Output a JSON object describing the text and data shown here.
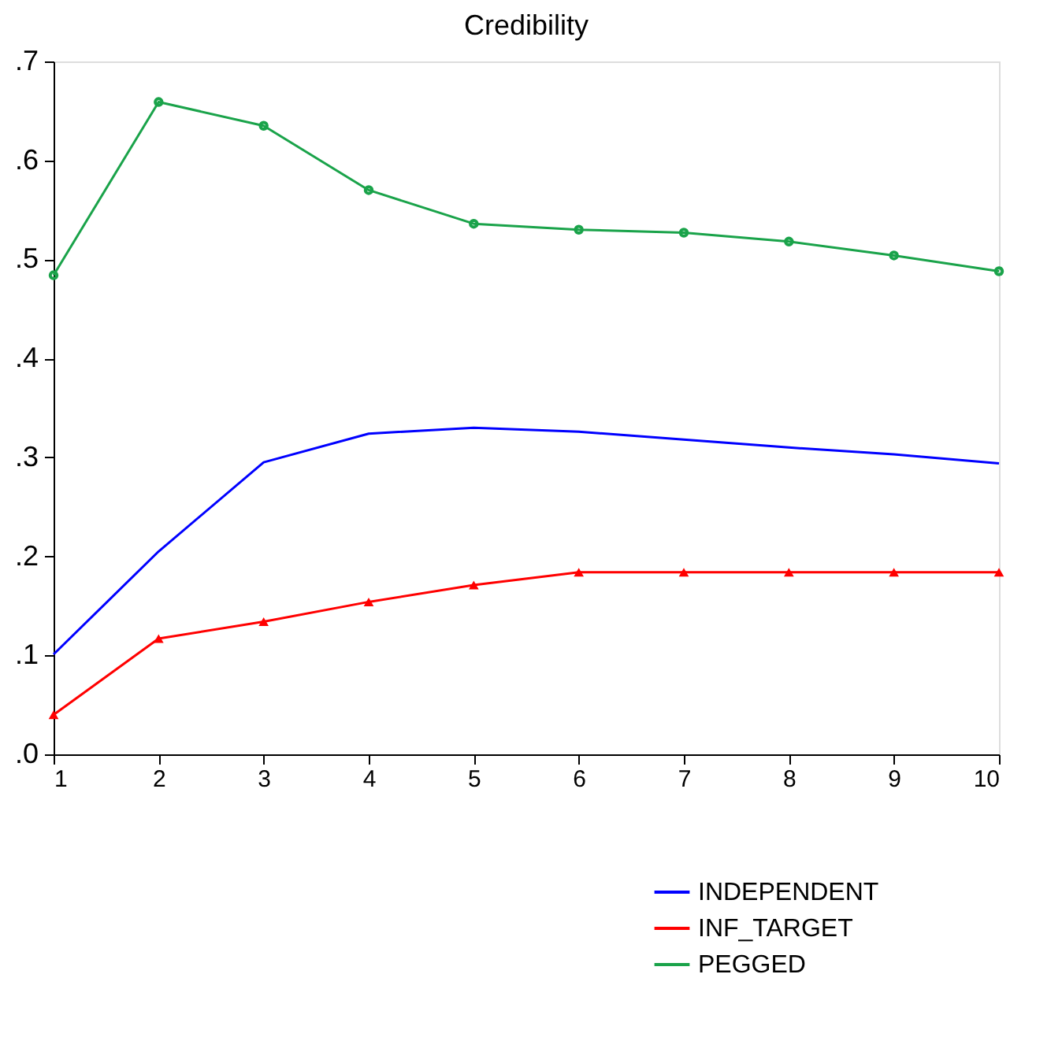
{
  "chart_data": {
    "type": "line",
    "title": "Credibility",
    "x": [
      1,
      2,
      3,
      4,
      5,
      6,
      7,
      8,
      9,
      10
    ],
    "xlim": [
      1,
      10
    ],
    "xticks": [
      1,
      2,
      3,
      4,
      5,
      6,
      7,
      8,
      9,
      10
    ],
    "ylim": [
      0,
      0.7
    ],
    "yticks": [
      {
        "value": 0,
        "label": ".0"
      },
      {
        "value": 0.1,
        "label": ".1"
      },
      {
        "value": 0.2,
        "label": ".2"
      },
      {
        "value": 0.3,
        "label": ".3"
      },
      {
        "value": 0.4,
        "label": ".4"
      },
      {
        "value": 0.5,
        "label": ".5"
      },
      {
        "value": 0.6,
        "label": ".6"
      },
      {
        "value": 0.7,
        "label": ".7"
      }
    ],
    "grid": false,
    "legend": "bottom right",
    "series": [
      {
        "name": "INDEPENDENT",
        "color": "#0000ff",
        "marker": "none",
        "values": [
          0.101,
          0.205,
          0.295,
          0.324,
          0.33,
          0.326,
          0.318,
          0.31,
          0.303,
          0.294
        ]
      },
      {
        "name": "INF_TARGET",
        "color": "#ff0000",
        "marker": "triangle",
        "values": [
          0.04,
          0.117,
          0.134,
          0.154,
          0.171,
          0.184,
          0.184,
          0.184,
          0.184,
          0.184
        ]
      },
      {
        "name": "PEGGED",
        "color": "#1aa34a",
        "marker": "circle",
        "values": [
          0.484,
          0.659,
          0.635,
          0.57,
          0.536,
          0.53,
          0.527,
          0.518,
          0.504,
          0.488
        ]
      }
    ]
  }
}
